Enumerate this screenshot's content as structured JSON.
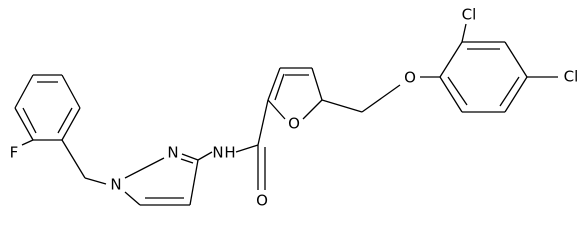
{
  "atoms": [
    {
      "label": "Cl"
    },
    {
      "label": "Cl"
    },
    {
      "label": "O"
    },
    {
      "label": "O"
    },
    {
      "label": "O"
    },
    {
      "label": "N"
    },
    {
      "label": "N"
    },
    {
      "label": "N"
    },
    {
      "label": "H"
    },
    {
      "label": "F"
    }
  ]
}
